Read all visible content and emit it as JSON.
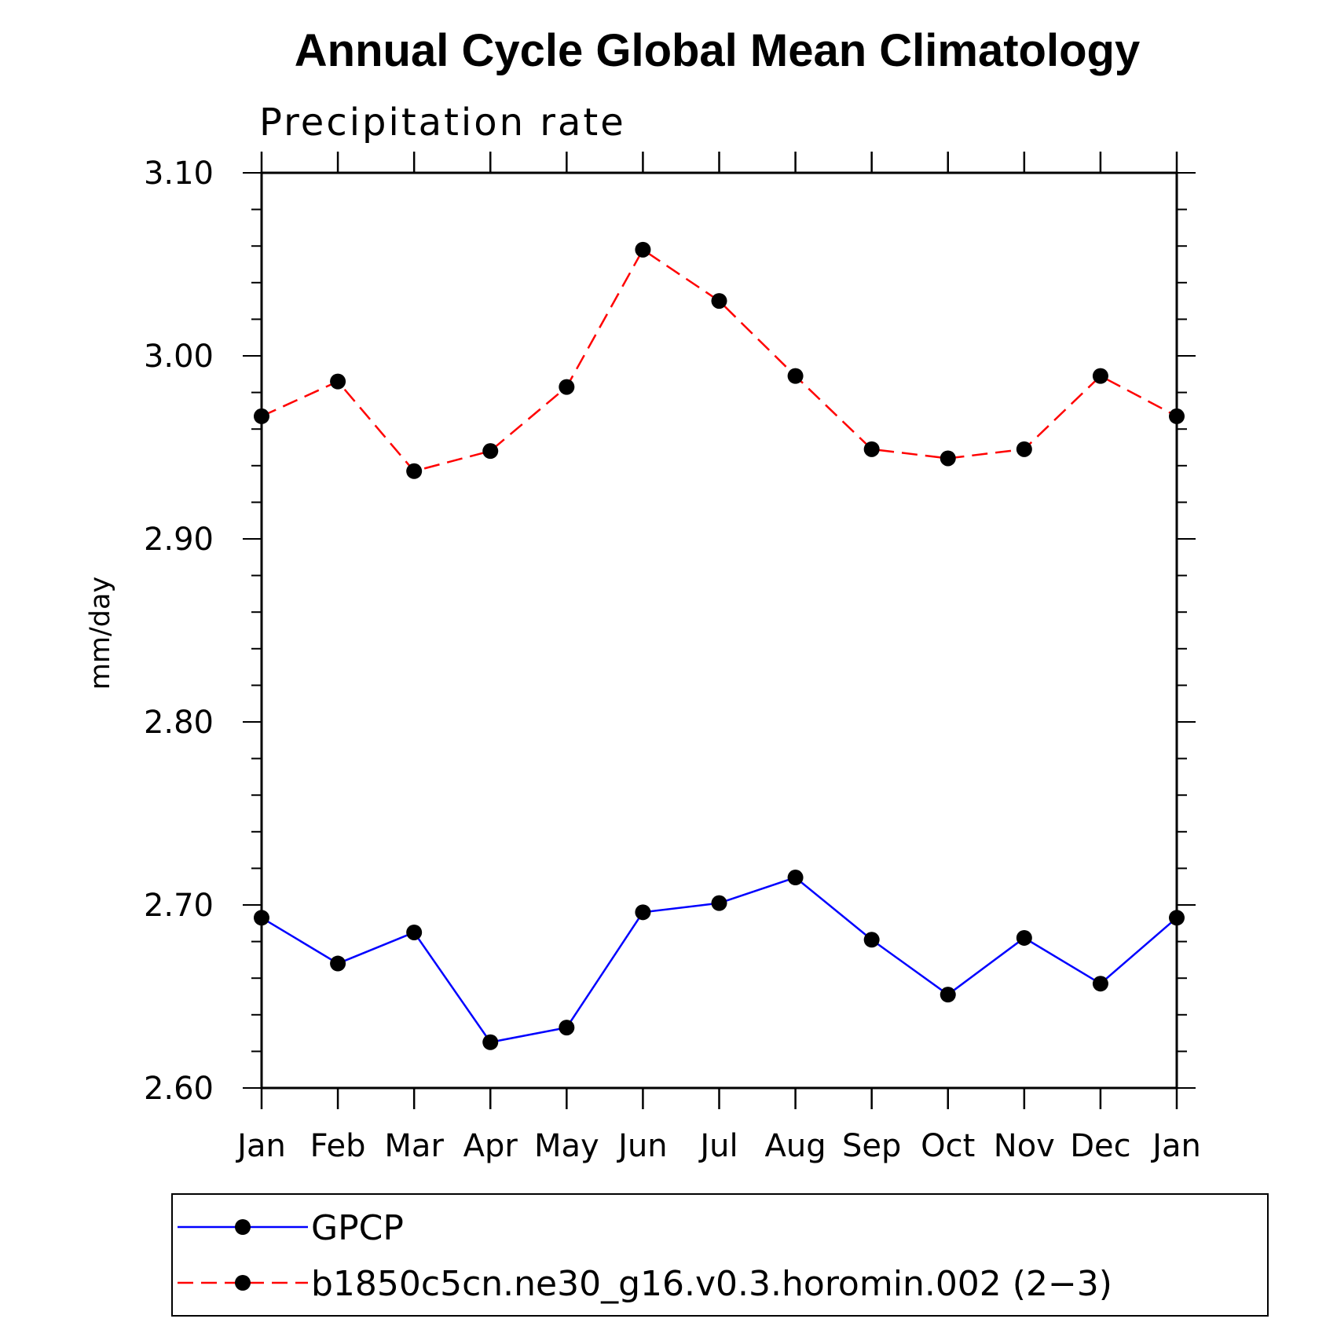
{
  "chart_data": {
    "type": "line",
    "title": "Annual Cycle Global Mean Climatology",
    "subtitle": "Precipitation rate",
    "xlabel": "",
    "ylabel": "mm/day",
    "categories": [
      "Jan",
      "Feb",
      "Mar",
      "Apr",
      "May",
      "Jun",
      "Jul",
      "Aug",
      "Sep",
      "Oct",
      "Nov",
      "Dec",
      "Jan"
    ],
    "ylim": [
      2.6,
      3.1
    ],
    "yticks": [
      "2.60",
      "2.70",
      "2.80",
      "2.90",
      "3.00",
      "3.10"
    ],
    "grid": false,
    "legend_position": "bottom",
    "series": [
      {
        "name": "GPCP",
        "color": "#0000ff",
        "line_style": "solid",
        "marker": "filled-circle",
        "values": [
          2.693,
          2.668,
          2.685,
          2.625,
          2.633,
          2.696,
          2.701,
          2.715,
          2.681,
          2.651,
          2.682,
          2.657,
          2.693
        ]
      },
      {
        "name": "b1850c5cn.ne30_g16.v0.3.horomin.002 (2−3)",
        "color": "#ff0000",
        "line_style": "dashed",
        "marker": "filled-circle",
        "values": [
          2.967,
          2.986,
          2.937,
          2.948,
          2.983,
          3.058,
          3.03,
          2.989,
          2.949,
          2.944,
          2.949,
          2.989,
          2.967
        ]
      }
    ]
  }
}
